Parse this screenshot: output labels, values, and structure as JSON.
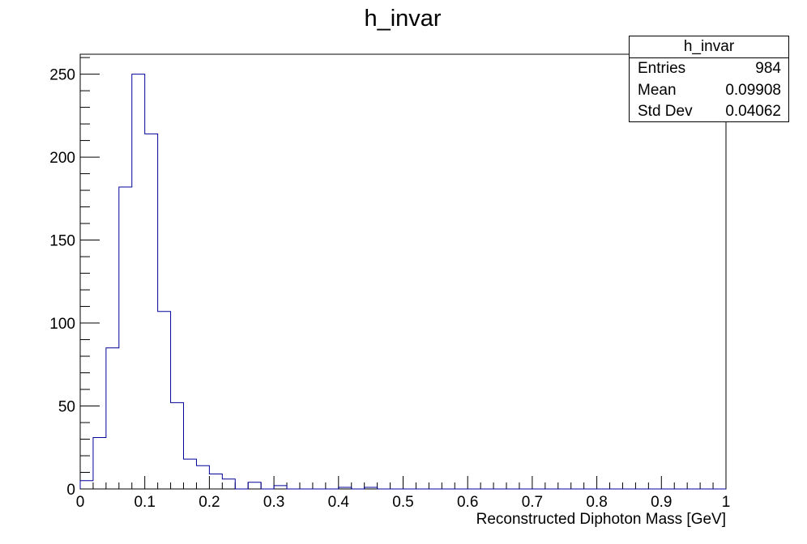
{
  "chart_data": {
    "type": "bar",
    "title": "h_invar",
    "xlabel": "Reconstructed Diphoton Mass [GeV]",
    "ylabel": "",
    "xlim": [
      0,
      1
    ],
    "ylim": [
      0,
      262
    ],
    "x_ticks": [
      "0",
      "0.1",
      "0.2",
      "0.3",
      "0.4",
      "0.5",
      "0.6",
      "0.7",
      "0.8",
      "0.9",
      "1"
    ],
    "y_ticks": [
      "0",
      "50",
      "100",
      "150",
      "200",
      "250"
    ],
    "bin_width": 0.02,
    "bin_edges_start": 0,
    "values": [
      5,
      31,
      85,
      182,
      250,
      214,
      107,
      52,
      18,
      14,
      9,
      6,
      0,
      4,
      0,
      2,
      0,
      0,
      0,
      0,
      1,
      0,
      1,
      0,
      0,
      0,
      0,
      0,
      0,
      0,
      0,
      0,
      0,
      0,
      0,
      0,
      0,
      0,
      0,
      0,
      0,
      0,
      0,
      0,
      0,
      0,
      0,
      0,
      0,
      0
    ],
    "line_color": "#000099",
    "grid": false,
    "legend": "none"
  },
  "stats": {
    "title": "h_invar",
    "rows": [
      {
        "label": "Entries",
        "value": "984"
      },
      {
        "label": "Mean",
        "value": "0.09908"
      },
      {
        "label": "Std Dev",
        "value": "0.04062"
      }
    ]
  }
}
